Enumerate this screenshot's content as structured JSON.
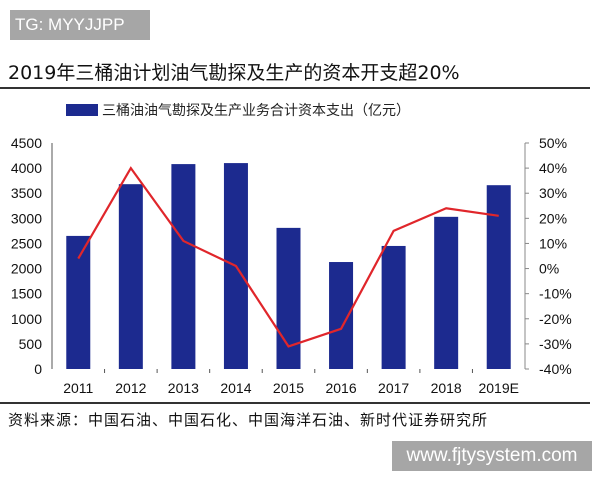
{
  "watermark_top": "TG: MYYJJPP",
  "watermark_bottom": "www.fjtysystem.com",
  "source": "资料来源：中国石油、中国石化、中国海洋石油、新时代证券研究所",
  "colors": {
    "bar": "#1c2a8f",
    "line": "#e0262b"
  },
  "chart_data": {
    "type": "bar+line",
    "title": "2019年三桶油计划油气勘探及生产的资本开支超20%",
    "categories": [
      "2011",
      "2012",
      "2013",
      "2014",
      "2015",
      "2016",
      "2017",
      "2018",
      "2019E"
    ],
    "series": [
      {
        "name": "三桶油油气勘探及生产业务合计资本支出（亿元）",
        "type": "bar",
        "axis": "left",
        "values": [
          2650,
          3680,
          4080,
          4100,
          2810,
          2130,
          2450,
          3030,
          3660
        ]
      },
      {
        "type": "line",
        "axis": "right",
        "values": [
          4,
          40,
          11,
          1,
          -31,
          -24,
          15,
          24,
          21
        ]
      }
    ],
    "y_left": {
      "ylim": [
        0,
        4500
      ],
      "ticks": [
        "0",
        "500",
        "1000",
        "1500",
        "2000",
        "2500",
        "3000",
        "3500",
        "4000",
        "4500"
      ]
    },
    "y_right": {
      "ylim": [
        -40,
        50
      ],
      "ticks": [
        "-40%",
        "-30%",
        "-20%",
        "-10%",
        "0%",
        "10%",
        "20%",
        "30%",
        "40%",
        "50%"
      ]
    },
    "legend": "top",
    "grid": false
  }
}
